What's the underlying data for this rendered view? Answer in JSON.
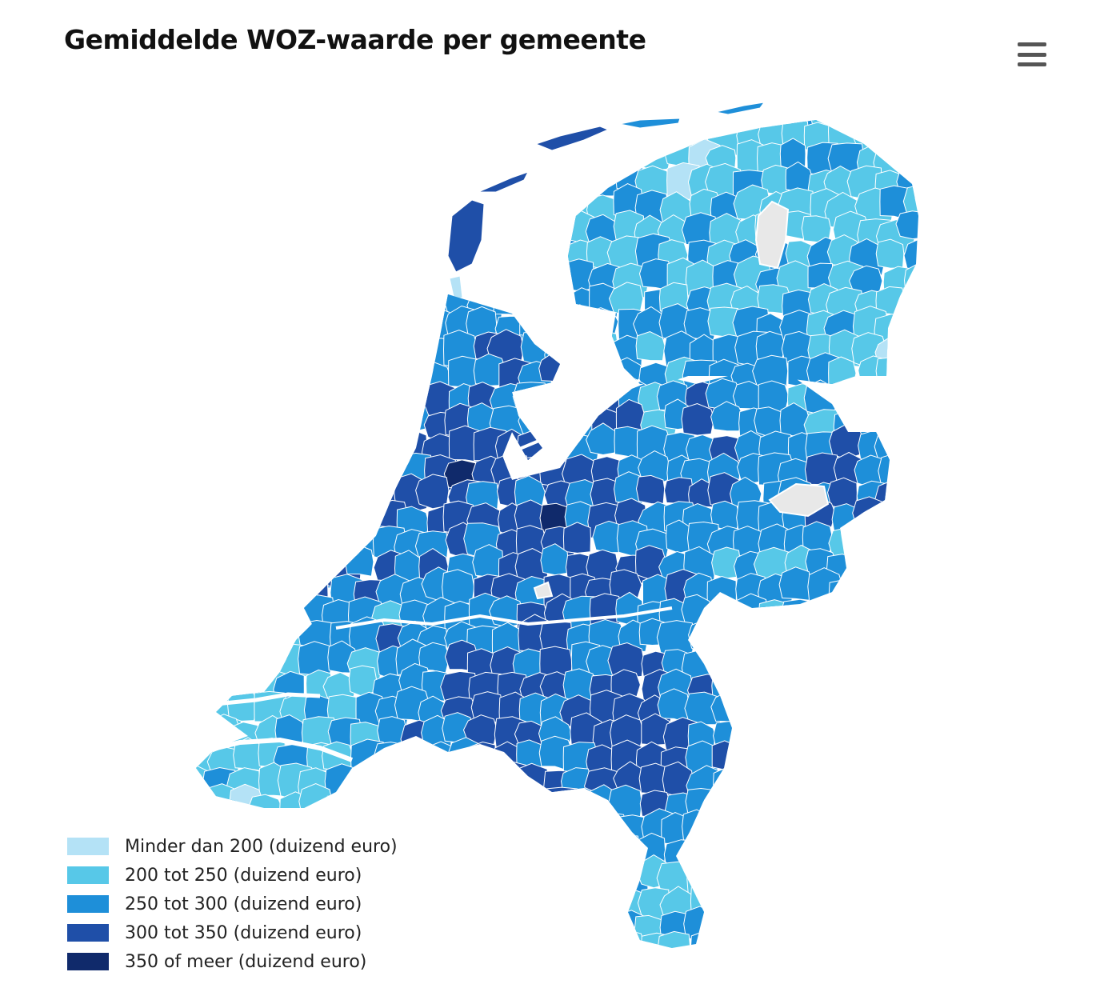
{
  "title": "Gemiddelde WOZ-waarde per gemeente",
  "menu_icon": "hamburger-menu-icon",
  "colors": {
    "no_data": "#e8e8e8",
    "border": "#ffffff"
  },
  "legend": [
    {
      "label": "Minder dan 200 (duizend euro)",
      "color": "#b4e2f6"
    },
    {
      "label": "200 tot 250 (duizend euro)",
      "color": "#57c8e8"
    },
    {
      "label": "250 tot 300 (duizend euro)",
      "color": "#1e8fd9"
    },
    {
      "label": "300 tot 350 (duizend euro)",
      "color": "#1f4fa8"
    },
    {
      "label": "350 of meer (duizend euro)",
      "color": "#102a6b"
    }
  ]
}
